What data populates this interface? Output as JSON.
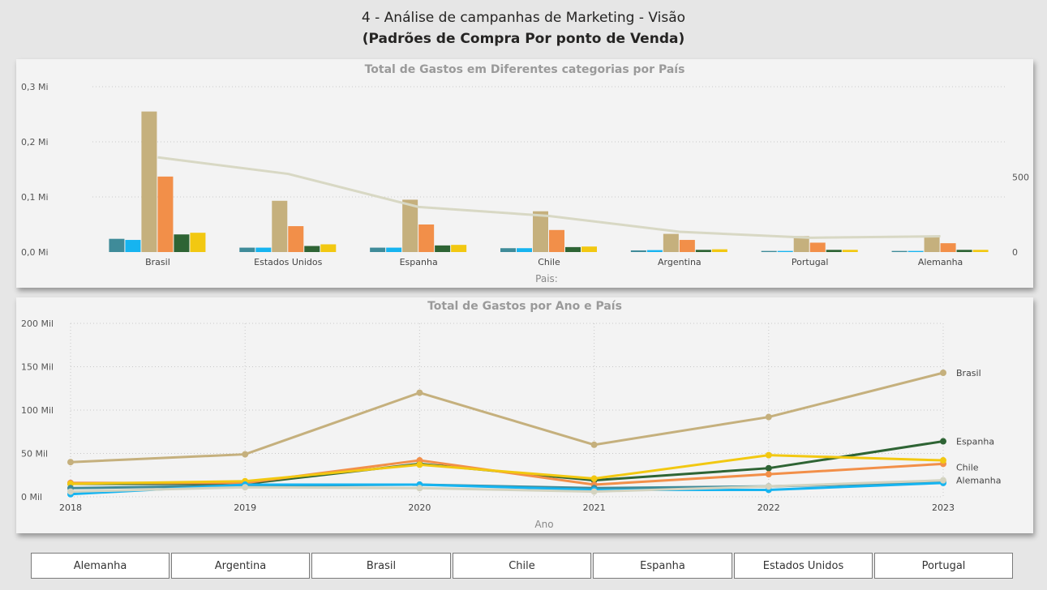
{
  "page": {
    "title": "4 - Análise de campanhas de Marketing - Visão",
    "subtitle": "(Padrões de Compra Por ponto de Venda)"
  },
  "chart_data": [
    {
      "type": "bar",
      "title": "Total de Gastos em Diferentes categorias por País",
      "xlabel": "Pais:",
      "ylabel": "",
      "ylim": [
        0,
        300000
      ],
      "y_ticks": [
        "0,0 Mi",
        "0,1 Mi",
        "0,2 Mi",
        "0,3 Mi"
      ],
      "y2_ticks": [
        "0",
        "500"
      ],
      "y2lim": [
        0,
        1100
      ],
      "categories": [
        "Brasil",
        "Estados Unidos",
        "Espanha",
        "Chile",
        "Argentina",
        "Portugal",
        "Alemanha"
      ],
      "series": [
        {
          "color": "#3f8b99",
          "values": [
            24000,
            8000,
            8000,
            7000,
            3000,
            2000,
            2000
          ]
        },
        {
          "color": "#16b4f0",
          "values": [
            22000,
            8000,
            8000,
            7000,
            3500,
            2000,
            2000
          ]
        },
        {
          "color": "#c5b07d",
          "values": [
            255000,
            93000,
            95000,
            74000,
            33000,
            29000,
            30000
          ]
        },
        {
          "color": "#f28f49",
          "values": [
            137000,
            47000,
            50000,
            40000,
            22000,
            17000,
            16000
          ]
        },
        {
          "color": "#2e6434",
          "values": [
            32000,
            11000,
            12000,
            9000,
            4000,
            4000,
            4000
          ]
        },
        {
          "color": "#f2c811",
          "values": [
            35000,
            14000,
            13000,
            10000,
            5000,
            4000,
            4000
          ]
        }
      ],
      "line_series": {
        "color": "#d8d8c4",
        "values": [
          630,
          520,
          300,
          240,
          135,
          95,
          105
        ]
      },
      "grid": true
    },
    {
      "type": "line",
      "title": "Total de Gastos por Ano e País",
      "xlabel": "Ano",
      "ylabel": "",
      "ylim": [
        0,
        200000
      ],
      "y_ticks": [
        "0 Mil",
        "50 Mil",
        "100 Mil",
        "150 Mil",
        "200 Mil"
      ],
      "x": [
        "2018",
        "2019",
        "2020",
        "2021",
        "2022",
        "2023"
      ],
      "series": [
        {
          "name": "Brasil",
          "color": "#c5b07d",
          "values": [
            40000,
            49000,
            120000,
            60000,
            92000,
            143000
          ]
        },
        {
          "name": "Espanha",
          "color": "#2e6434",
          "values": [
            15000,
            15000,
            38000,
            19000,
            33000,
            64000
          ]
        },
        {
          "name": "Chile",
          "color": "#f28f49",
          "values": [
            16000,
            16000,
            42000,
            14000,
            26000,
            38000
          ]
        },
        {
          "name": "",
          "color": "#f2c811",
          "values": [
            15000,
            18000,
            37000,
            21000,
            48000,
            42000
          ]
        },
        {
          "name": "",
          "color": "#3f8b99",
          "values": [
            10000,
            13000,
            14000,
            10000,
            12000,
            17000
          ]
        },
        {
          "name": "",
          "color": "#16b4f0",
          "values": [
            3000,
            14000,
            14000,
            8000,
            8000,
            16000
          ]
        },
        {
          "name": "Alemanha",
          "color": "#d3d3c0",
          "values": [
            6000,
            11000,
            10000,
            6000,
            12000,
            19000
          ]
        }
      ],
      "grid": true
    }
  ],
  "slicer": {
    "items": [
      "Alemanha",
      "Argentina",
      "Brasil",
      "Chile",
      "Espanha",
      "Estados Unidos",
      "Portugal"
    ]
  }
}
